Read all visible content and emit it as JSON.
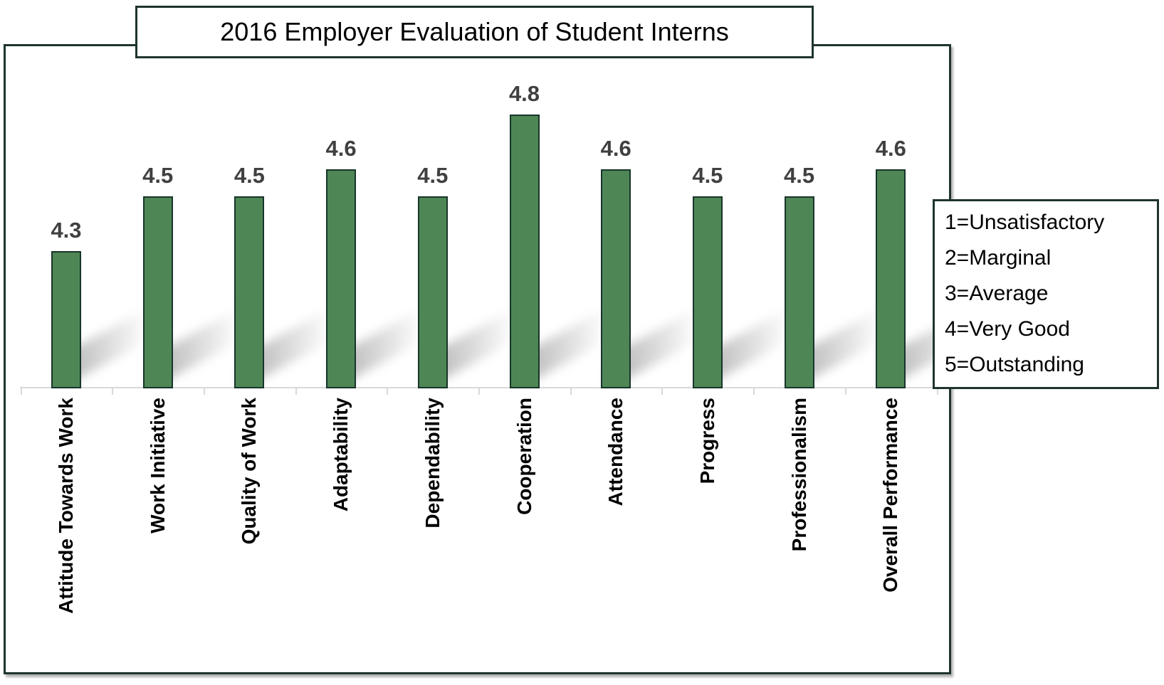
{
  "chart_data": {
    "type": "bar",
    "title": "2016 Employer Evaluation of Student Interns",
    "categories": [
      "Attitude Towards Work",
      "Work Initiative",
      "Quality of Work",
      "Adaptability",
      "Dependability",
      "Cooperation",
      "Attendance",
      "Progress",
      "Professionalism",
      "Overall Performance"
    ],
    "values": [
      4.3,
      4.5,
      4.5,
      4.6,
      4.5,
      4.8,
      4.6,
      4.5,
      4.5,
      4.6
    ],
    "data_labels": [
      "4.3",
      "4.5",
      "4.5",
      "4.6",
      "4.5",
      "4.8",
      "4.6",
      "4.5",
      "4.5",
      "4.6"
    ],
    "legend_items": [
      "1=Unsatisfactory",
      "2=Marginal",
      "3=Average",
      "4=Very Good",
      "5=Outstanding"
    ],
    "legend_position": "right",
    "xlabel": "",
    "ylabel": "",
    "ylim": [
      3.8,
      5.0
    ],
    "grid": false,
    "x_label_rotation": 90,
    "bar_color": "#4f8656",
    "bar_border_color": "#17352a",
    "value_label_color": "#404040",
    "axis_line_color": "#d9d9d9"
  }
}
